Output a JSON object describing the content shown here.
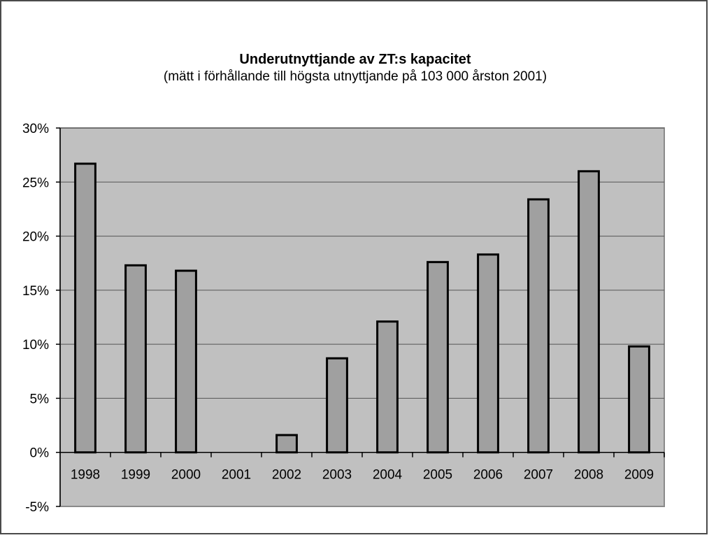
{
  "chart_data": {
    "type": "bar",
    "title": "Underutnyttjande av ZT:s kapacitet",
    "subtitle": "(mätt i förhållande till högsta utnyttjande på 103 000 årston 2001)",
    "categories": [
      "1998",
      "1999",
      "2000",
      "2001",
      "2002",
      "2003",
      "2004",
      "2005",
      "2006",
      "2007",
      "2008",
      "2009"
    ],
    "values": [
      0.267,
      0.173,
      0.168,
      0.0,
      0.016,
      0.087,
      0.121,
      0.176,
      0.183,
      0.234,
      0.26,
      0.098
    ],
    "ylim": [
      -0.05,
      0.3
    ],
    "yticks": [
      0.3,
      0.25,
      0.2,
      0.15,
      0.1,
      0.05,
      0.0,
      -0.05
    ],
    "ytick_labels": [
      "30%",
      "25%",
      "20%",
      "15%",
      "10%",
      "5%",
      "0%",
      "-5%"
    ],
    "xlabel": "",
    "ylabel": "",
    "grid": true,
    "legend": "none",
    "colors": {
      "bar": "#a0a0a0",
      "plot_background": "#c0c0c0",
      "gridline": "#555555",
      "bar_border": "#000000"
    }
  }
}
